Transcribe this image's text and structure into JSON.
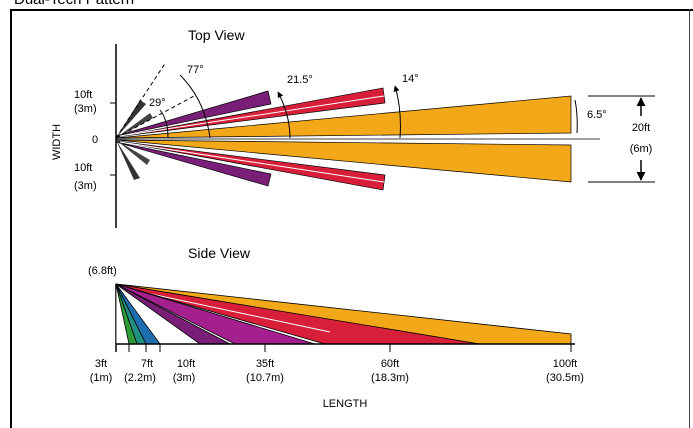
{
  "header": {
    "caption": "Dual-Tech Pattern"
  },
  "colors": {
    "orange": "#f3a81a",
    "red": "#d71f3a",
    "purple": "#7a1f78",
    "magenta": "#a3208e",
    "blue": "#1f6fb0",
    "teal": "#1f8f82",
    "green": "#2f9a3a",
    "line": "#000000"
  },
  "top_view": {
    "title": "Top View",
    "axis_label": "WIDTH",
    "tick_top": "10ft",
    "tick_top_m": "(3m)",
    "tick_zero": "0",
    "tick_bottom": "10ft",
    "tick_bottom_m": "(3m)",
    "angle_77": "77°",
    "angle_29": "29°",
    "angle_21": "21.5°",
    "angle_14": "14°",
    "angle_6": "6.5°",
    "width_ft": "20ft",
    "width_m": "(6m)"
  },
  "side_view": {
    "title": "Side View",
    "height_label": "(6.8ft)",
    "ticks": [
      {
        "ft": "3ft",
        "m": "(1m)"
      },
      {
        "ft": "7ft",
        "m": "(2.2m)"
      },
      {
        "ft": "10ft",
        "m": "(3m)"
      },
      {
        "ft": "35ft",
        "m": "(10.7m)"
      },
      {
        "ft": "60ft",
        "m": "(18.3m)"
      },
      {
        "ft": "100ft",
        "m": "(30.5m)"
      }
    ],
    "axis_label": "LENGTH"
  }
}
